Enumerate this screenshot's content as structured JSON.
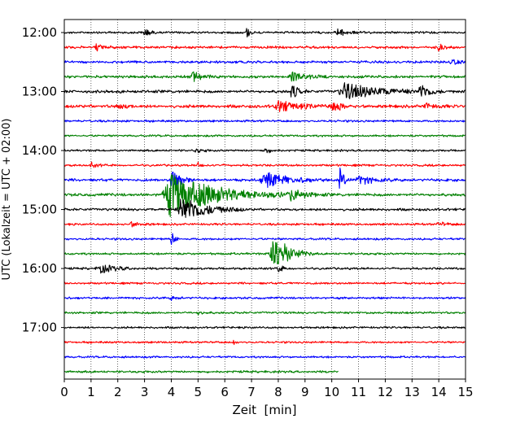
{
  "chart_data": {
    "type": "line",
    "title": "",
    "xlabel": "Zeit  [min]",
    "ylabel": "UTC (Lokalzeit = UTC + 02:00)",
    "xlim": [
      0,
      15
    ],
    "x_ticks": [
      0,
      1,
      2,
      3,
      4,
      5,
      6,
      7,
      8,
      9,
      10,
      11,
      12,
      13,
      14,
      15
    ],
    "y_ticks": [
      "12:00",
      "13:00",
      "14:00",
      "15:00",
      "16:00",
      "17:00"
    ],
    "grid": "vertical dotted",
    "row_minutes": 15,
    "row_colors": [
      "#000000",
      "#ff0000",
      "#0000ff",
      "#008000"
    ],
    "rows": [
      {
        "start": "12:00",
        "color": "#000000",
        "noise": 0.6,
        "end_min": 15,
        "events": [
          {
            "t": 3.0,
            "amp": 6,
            "dur": 0.15
          },
          {
            "t": 6.8,
            "amp": 8,
            "dur": 0.1
          },
          {
            "t": 10.2,
            "amp": 4,
            "dur": 0.4
          }
        ]
      },
      {
        "start": "12:15",
        "color": "#ff0000",
        "noise": 0.8,
        "end_min": 15,
        "events": [
          {
            "t": 1.2,
            "amp": 3,
            "dur": 0.3
          },
          {
            "t": 14.0,
            "amp": 3,
            "dur": 0.3
          }
        ]
      },
      {
        "start": "12:30",
        "color": "#0000ff",
        "noise": 0.8,
        "end_min": 15,
        "events": [
          {
            "t": 14.5,
            "amp": 2.5,
            "dur": 0.3
          }
        ]
      },
      {
        "start": "12:45",
        "color": "#008000",
        "noise": 0.9,
        "end_min": 15,
        "events": [
          {
            "t": 4.8,
            "amp": 6,
            "dur": 0.3
          },
          {
            "t": 8.5,
            "amp": 5,
            "dur": 0.5
          }
        ]
      },
      {
        "start": "13:00",
        "color": "#000000",
        "noise": 1.0,
        "end_min": 15,
        "events": [
          {
            "t": 8.5,
            "amp": 8,
            "dur": 0.2
          },
          {
            "t": 10.5,
            "amp": 8,
            "dur": 1.2
          },
          {
            "t": 13.3,
            "amp": 7,
            "dur": 0.3
          }
        ]
      },
      {
        "start": "13:15",
        "color": "#ff0000",
        "noise": 1.1,
        "end_min": 15,
        "events": [
          {
            "t": 2.0,
            "amp": 3,
            "dur": 0.3
          },
          {
            "t": 8.0,
            "amp": 5,
            "dur": 0.8
          },
          {
            "t": 10.0,
            "amp": 6,
            "dur": 0.3
          },
          {
            "t": 13.5,
            "amp": 3,
            "dur": 0.3
          }
        ]
      },
      {
        "start": "13:30",
        "color": "#0000ff",
        "noise": 0.6,
        "end_min": 15,
        "events": []
      },
      {
        "start": "13:45",
        "color": "#008000",
        "noise": 0.5,
        "end_min": 15,
        "events": []
      },
      {
        "start": "14:00",
        "color": "#000000",
        "noise": 0.5,
        "end_min": 15,
        "events": [
          {
            "t": 4.9,
            "amp": 3,
            "dur": 0.2
          },
          {
            "t": 7.5,
            "amp": 3,
            "dur": 0.2
          }
        ]
      },
      {
        "start": "14:15",
        "color": "#ff0000",
        "noise": 0.6,
        "end_min": 15,
        "events": [
          {
            "t": 1.0,
            "amp": 3,
            "dur": 0.2
          },
          {
            "t": 5.0,
            "amp": 2,
            "dur": 0.2
          }
        ]
      },
      {
        "start": "14:30",
        "color": "#0000ff",
        "noise": 0.9,
        "end_min": 15,
        "events": [
          {
            "t": 4.0,
            "amp": 12,
            "dur": 0.3
          },
          {
            "t": 7.5,
            "amp": 8,
            "dur": 0.8
          },
          {
            "t": 10.3,
            "amp": 12,
            "dur": 0.15
          },
          {
            "t": 11.0,
            "amp": 5,
            "dur": 0.5
          }
        ]
      },
      {
        "start": "14:45",
        "color": "#008000",
        "noise": 1.0,
        "end_min": 15,
        "events": [
          {
            "t": 4.0,
            "amp": 22,
            "dur": 1.5
          },
          {
            "t": 8.5,
            "amp": 6,
            "dur": 0.5
          }
        ]
      },
      {
        "start": "15:00",
        "color": "#000000",
        "noise": 0.8,
        "end_min": 15,
        "events": [
          {
            "t": 4.4,
            "amp": 14,
            "dur": 0.8
          }
        ]
      },
      {
        "start": "15:15",
        "color": "#ff0000",
        "noise": 0.6,
        "end_min": 15,
        "events": [
          {
            "t": 2.5,
            "amp": 2.5,
            "dur": 0.3
          },
          {
            "t": 14.0,
            "amp": 2.5,
            "dur": 0.3
          }
        ]
      },
      {
        "start": "15:30",
        "color": "#0000ff",
        "noise": 0.6,
        "end_min": 15,
        "events": [
          {
            "t": 4.0,
            "amp": 10,
            "dur": 0.1
          }
        ]
      },
      {
        "start": "15:45",
        "color": "#008000",
        "noise": 0.6,
        "end_min": 15,
        "events": [
          {
            "t": 7.8,
            "amp": 22,
            "dur": 0.5
          }
        ]
      },
      {
        "start": "16:00",
        "color": "#000000",
        "noise": 0.6,
        "end_min": 15,
        "events": [
          {
            "t": 1.3,
            "amp": 5,
            "dur": 0.5
          },
          {
            "t": 8.0,
            "amp": 4,
            "dur": 0.2
          }
        ]
      },
      {
        "start": "16:15",
        "color": "#ff0000",
        "noise": 0.5,
        "end_min": 15,
        "events": []
      },
      {
        "start": "16:30",
        "color": "#0000ff",
        "noise": 0.6,
        "end_min": 15,
        "events": [
          {
            "t": 4.0,
            "amp": 2,
            "dur": 0.2
          }
        ]
      },
      {
        "start": "16:45",
        "color": "#008000",
        "noise": 0.6,
        "end_min": 15,
        "events": [
          {
            "t": 5.0,
            "amp": 2,
            "dur": 0.2
          }
        ]
      },
      {
        "start": "17:00",
        "color": "#000000",
        "noise": 0.5,
        "end_min": 15,
        "events": []
      },
      {
        "start": "17:15",
        "color": "#ff0000",
        "noise": 0.5,
        "end_min": 15,
        "events": [
          {
            "t": 6.3,
            "amp": 6,
            "dur": 0.05
          }
        ]
      },
      {
        "start": "17:30",
        "color": "#0000ff",
        "noise": 0.5,
        "end_min": 15,
        "events": []
      },
      {
        "start": "17:45",
        "color": "#008000",
        "noise": 0.6,
        "end_min": 10.25,
        "events": []
      }
    ]
  }
}
